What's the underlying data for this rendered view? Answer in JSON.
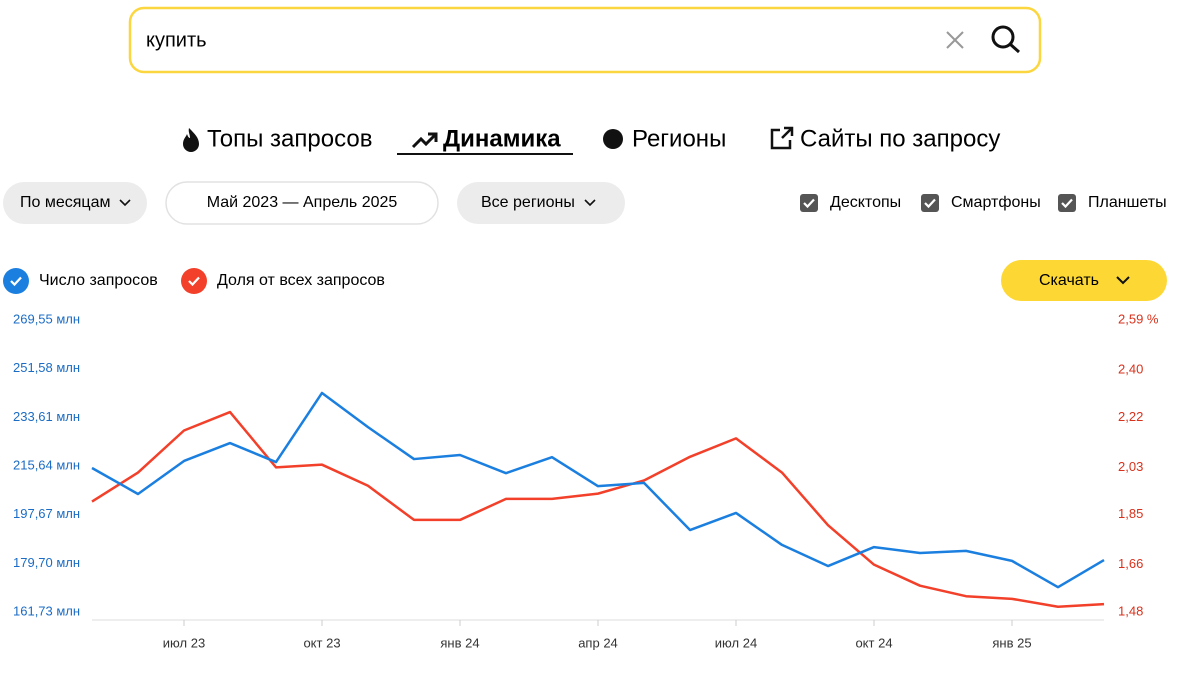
{
  "ui": {
    "search": {
      "query": "купить"
    },
    "tabs": [
      "Топы запросов",
      "Динамика",
      "Регионы",
      "Сайты по запросу"
    ],
    "filters": {
      "period_type": "По месяцам",
      "period": "Май 2023 — Апрель 2025",
      "regions": "Все регионы"
    },
    "devices": [
      "Десктопы",
      "Смартфоны",
      "Планшеты"
    ],
    "download": "Скачать"
  },
  "chart_data": {
    "type": "line",
    "categories": [
      null,
      null,
      "июл 23",
      null,
      null,
      "окт 23",
      null,
      null,
      "янв 24",
      null,
      null,
      "апр 24",
      null,
      null,
      "июл 24",
      null,
      null,
      "окт 24",
      null,
      null,
      "янв 25",
      null,
      null
    ],
    "series": [
      {
        "name": "Число запросов",
        "color": "#1b7fe0",
        "axis": "y",
        "values": [
          214.9,
          205.3,
          217.5,
          224.1,
          217.1,
          242.6,
          230.0,
          218.2,
          219.7,
          213.0,
          218.9,
          208.2,
          209.4,
          192.0,
          198.3,
          186.5,
          178.7,
          185.7,
          183.5,
          184.3,
          180.6,
          170.9,
          180.9
        ]
      },
      {
        "name": "Доля от всех запросов",
        "color": "#f2402a",
        "axis": "y2",
        "values": [
          1.9,
          2.01,
          2.17,
          2.24,
          2.03,
          2.04,
          1.96,
          1.83,
          1.83,
          1.91,
          1.91,
          1.93,
          1.98,
          2.07,
          2.14,
          2.01,
          1.81,
          1.66,
          1.58,
          1.54,
          1.53,
          1.5,
          1.51
        ]
      }
    ],
    "ylim": [
      161.73,
      269.55
    ],
    "yticks": [
      {
        "value": 269.55,
        "label": "269,55 млн"
      },
      {
        "value": 251.58,
        "label": "251,58 млн"
      },
      {
        "value": 233.61,
        "label": "233,61 млн"
      },
      {
        "value": 215.64,
        "label": "215,64 млн"
      },
      {
        "value": 197.67,
        "label": "197,67 млн"
      },
      {
        "value": 179.7,
        "label": "179,70 млн"
      },
      {
        "value": 161.73,
        "label": "161,73 млн"
      }
    ],
    "y2lim": [
      1.48,
      2.59
    ],
    "y2ticks": [
      {
        "value": 2.59,
        "label": "2,59 %"
      },
      {
        "value": 2.4,
        "label": "2,40"
      },
      {
        "value": 2.22,
        "label": "2,22"
      },
      {
        "value": 2.03,
        "label": "2,03"
      },
      {
        "value": 1.85,
        "label": "1,85"
      },
      {
        "value": 1.66,
        "label": "1,66"
      },
      {
        "value": 1.48,
        "label": "1,48"
      }
    ]
  }
}
